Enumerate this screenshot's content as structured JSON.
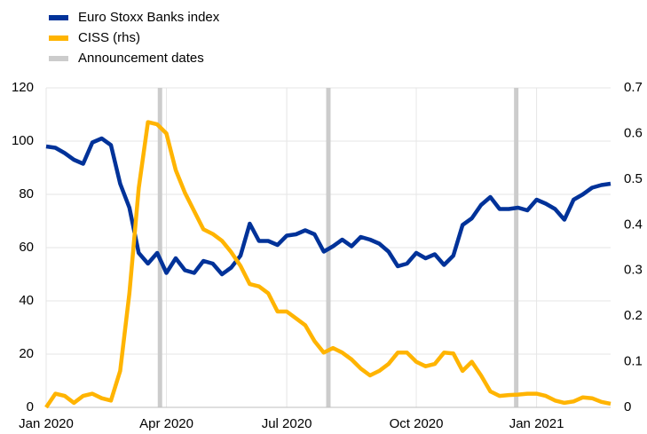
{
  "chart_data": {
    "type": "line",
    "categories": [
      "Jan 2020",
      null,
      null,
      null,
      null,
      null,
      null,
      null,
      null,
      null,
      null,
      null,
      null,
      "Apr 2020",
      null,
      null,
      null,
      null,
      null,
      null,
      null,
      null,
      null,
      null,
      null,
      null,
      "Jul 2020",
      null,
      null,
      null,
      null,
      null,
      null,
      null,
      null,
      null,
      null,
      null,
      null,
      null,
      "Oct 2020",
      null,
      null,
      null,
      null,
      null,
      null,
      null,
      null,
      null,
      null,
      null,
      null,
      "Jan 2021",
      null,
      null,
      null,
      null,
      null,
      null,
      null,
      null
    ],
    "series": [
      {
        "name": "Euro Stoxx Banks index",
        "color": "#003299",
        "axis": "y",
        "values": [
          98,
          97.5,
          95.5,
          93,
          91.5,
          99.5,
          101,
          98.5,
          84,
          75,
          58,
          54,
          58,
          50.5,
          56,
          51.5,
          50.5,
          55,
          54,
          50,
          52.5,
          57,
          69,
          62.5,
          62.5,
          61,
          64.5,
          65,
          66.5,
          65,
          58.5,
          60.5,
          63,
          60.5,
          64,
          63,
          61.5,
          58.5,
          53,
          54,
          58,
          56,
          57.5,
          53.5,
          57,
          68.5,
          71,
          76,
          79,
          74.5,
          74.5,
          75,
          74,
          78,
          76.5,
          74.5,
          70.5,
          78,
          80,
          82.5,
          83.5,
          84
        ]
      },
      {
        "name": "CISS (rhs)",
        "color": "#ffb400",
        "axis": "y2",
        "values": [
          0,
          0.03,
          0.025,
          0.01,
          0.025,
          0.03,
          0.02,
          0.015,
          0.08,
          0.25,
          0.48,
          0.625,
          0.62,
          0.6,
          0.52,
          0.47,
          0.43,
          0.39,
          0.38,
          0.365,
          0.34,
          0.31,
          0.27,
          0.265,
          0.25,
          0.21,
          0.21,
          0.195,
          0.18,
          0.145,
          0.12,
          0.13,
          0.12,
          0.105,
          0.085,
          0.07,
          0.08,
          0.095,
          0.12,
          0.12,
          0.1,
          0.09,
          0.095,
          0.12,
          0.118,
          0.08,
          0.1,
          0.07,
          0.035,
          0.025,
          0.027,
          0.028,
          0.03,
          0.03,
          0.025,
          0.015,
          0.01,
          0.013,
          0.022,
          0.02,
          0.012,
          0.008
        ]
      }
    ],
    "announcements": {
      "name": "Announcement dates",
      "color": "#cccccc",
      "positions": [
        12.3,
        30.5,
        50.8
      ]
    },
    "ylim": [
      0,
      120
    ],
    "yticks": [
      0,
      20,
      40,
      60,
      80,
      100,
      120
    ],
    "y2lim": [
      0,
      0.7
    ],
    "y2ticks": [
      0,
      0.1,
      0.2,
      0.3,
      0.4,
      0.5,
      0.6,
      0.7
    ],
    "grid": true,
    "legend": "top-left"
  }
}
